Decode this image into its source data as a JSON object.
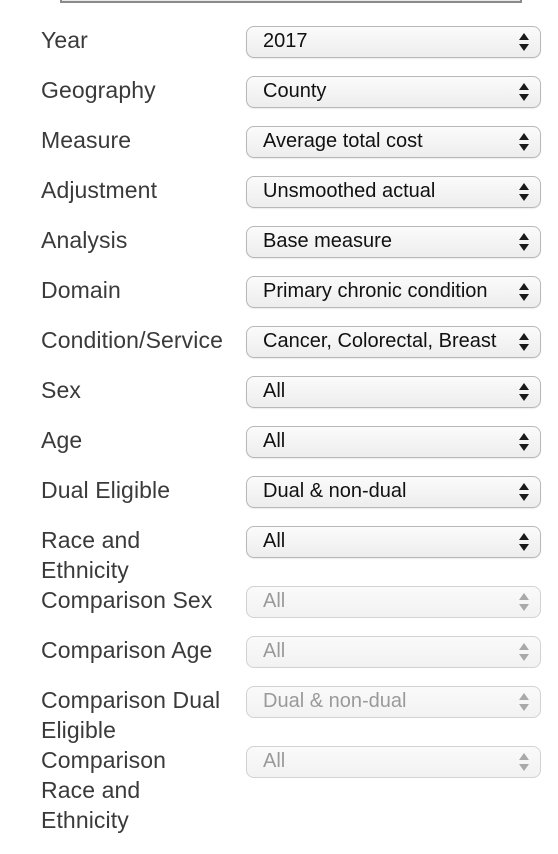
{
  "fields": [
    {
      "label": "Year",
      "value": "2017",
      "disabled": false
    },
    {
      "label": "Geography",
      "value": "County",
      "disabled": false
    },
    {
      "label": "Measure",
      "value": "Average total cost",
      "disabled": false
    },
    {
      "label": "Adjustment",
      "value": "Unsmoothed actual",
      "disabled": false
    },
    {
      "label": "Analysis",
      "value": "Base measure",
      "disabled": false
    },
    {
      "label": "Domain",
      "value": "Primary chronic condition",
      "disabled": false
    },
    {
      "label": "Condition/Service",
      "value": "Cancer, Colorectal, Breast",
      "disabled": false
    },
    {
      "label": "Sex",
      "value": "All",
      "disabled": false
    },
    {
      "label": "Age",
      "value": "All",
      "disabled": false
    },
    {
      "label": "Dual Eligible",
      "value": "Dual & non-dual",
      "disabled": false
    },
    {
      "label": "Race and Ethnicity",
      "value": "All",
      "disabled": false
    },
    {
      "label": "Comparison Sex",
      "value": "All",
      "disabled": true
    },
    {
      "label": "Comparison Age",
      "value": "All",
      "disabled": true
    },
    {
      "label": "Comparison Dual Eligible",
      "value": "Dual & non-dual",
      "disabled": true
    },
    {
      "label": "Comparison Race and Ethnicity",
      "value": "All",
      "disabled": true
    }
  ],
  "icons": {
    "select_arrow": "chevron-up-down-icon"
  },
  "colors": {
    "label_text": "#3a3a3a",
    "value_text": "#111111",
    "disabled_text": "#9a9a9a"
  }
}
